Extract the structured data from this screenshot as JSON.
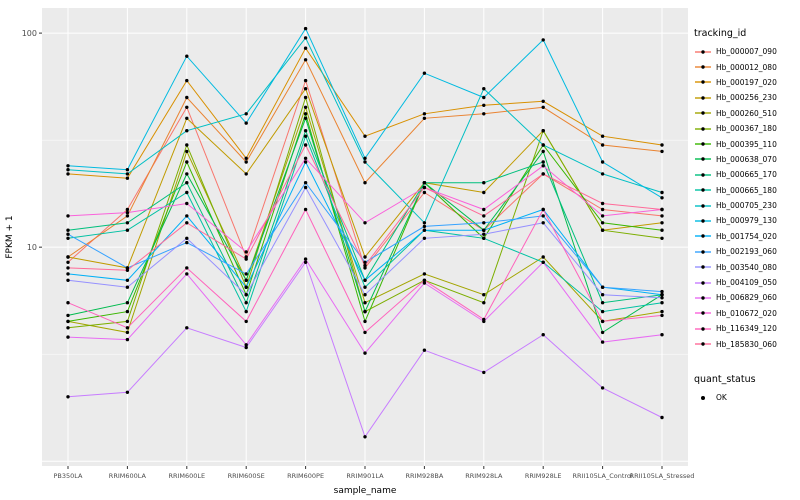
{
  "figure": {
    "background": "#FFFFFF",
    "panel_background": "#EBEBEB",
    "grid_color": "#FFFFFF",
    "xlabel": "sample_name",
    "ylabel": "FPKM + 1"
  },
  "legend": {
    "tracking_title": "tracking_id",
    "quant_title": "quant_status",
    "quant_items": [
      {
        "label": "OK",
        "symbol": "point",
        "color": "#000000"
      }
    ]
  },
  "chart_data": {
    "type": "line",
    "x_type": "categorical",
    "title": "",
    "xlabel": "sample_name",
    "ylabel": "FPKM + 1",
    "y_scale": "log10",
    "y_ticks": [
      10,
      100
    ],
    "y_tick_labels": [
      "10",
      "100"
    ],
    "ylim": [
      0.95,
      131
    ],
    "grid": true,
    "legend_position": "right",
    "point_color": "#000000",
    "categories": [
      "PB350LA",
      "RRIM600LA",
      "RRIM600LE",
      "RRIM600SE",
      "RRIM600PE",
      "RRIM901LA",
      "RRIM928BA",
      "RRIM928LA",
      "RRIM928LE",
      "RRII105LA_Control",
      "RRII105LA_Stressed"
    ],
    "series": [
      {
        "name": "Hb_000007_090",
        "color": "#F8766D",
        "values": [
          8.5,
          15,
          45,
          9,
          60,
          8,
          18,
          12,
          22,
          15,
          14
        ]
      },
      {
        "name": "Hb_000012_080",
        "color": "#EA8331",
        "values": [
          9,
          14,
          50,
          25,
          75,
          20,
          40,
          42,
          45,
          30,
          28
        ]
      },
      {
        "name": "Hb_000197_020",
        "color": "#D89000",
        "values": [
          22,
          21,
          60,
          26,
          85,
          33,
          42,
          46,
          48,
          33,
          30
        ]
      },
      {
        "name": "Hb_000256_230",
        "color": "#C09B00",
        "values": [
          9,
          8,
          40,
          22,
          55,
          9,
          20,
          18,
          35,
          12,
          13
        ]
      },
      {
        "name": "Hb_000260_510",
        "color": "#A3A500",
        "values": [
          4.5,
          4,
          28,
          7,
          45,
          5.5,
          7.5,
          6,
          9,
          4.5,
          5
        ]
      },
      {
        "name": "Hb_000367_180",
        "color": "#7CAE00",
        "values": [
          4.2,
          4.5,
          30,
          6.5,
          50,
          5,
          7,
          5.5,
          35,
          12,
          11
        ]
      },
      {
        "name": "Hb_000395_110",
        "color": "#39B600",
        "values": [
          4.5,
          5,
          25,
          6,
          42,
          4.5,
          20,
          11,
          30,
          13,
          12
        ]
      },
      {
        "name": "Hb_000638_070",
        "color": "#00BB4E",
        "values": [
          4.8,
          5.5,
          22,
          7,
          40,
          5,
          20,
          12,
          28,
          4,
          6
        ]
      },
      {
        "name": "Hb_000665_170",
        "color": "#00BF7D",
        "values": [
          12,
          13,
          20,
          5.5,
          35,
          7,
          20,
          20,
          25,
          5.5,
          6
        ]
      },
      {
        "name": "Hb_000665_180",
        "color": "#00C1A3",
        "values": [
          11,
          12,
          18,
          5,
          33,
          6.5,
          12,
          11,
          8.5,
          5,
          5.5
        ]
      },
      {
        "name": "Hb_000705_230",
        "color": "#00BFC4",
        "values": [
          23,
          22,
          35,
          42,
          95,
          25,
          13,
          55,
          30,
          22,
          18
        ]
      },
      {
        "name": "Hb_000979_130",
        "color": "#00BAE0",
        "values": [
          24,
          23,
          78,
          38,
          105,
          26,
          65,
          50,
          93,
          25,
          17
        ]
      },
      {
        "name": "Hb_001754_020",
        "color": "#00B0F6",
        "values": [
          7.5,
          7,
          14,
          6.5,
          25,
          7,
          12,
          12,
          15,
          6.5,
          6
        ]
      },
      {
        "name": "Hb_002193_060",
        "color": "#35A2FF",
        "values": [
          11.5,
          8,
          10.5,
          7.5,
          20,
          8.5,
          12.5,
          13,
          14,
          6.5,
          6.2
        ]
      },
      {
        "name": "Hb_003540_080",
        "color": "#9590FF",
        "values": [
          7,
          6.5,
          11,
          6,
          19,
          6,
          11,
          11.5,
          13,
          6,
          5.8
        ]
      },
      {
        "name": "Hb_004109_050",
        "color": "#C77CFF",
        "values": [
          2.0,
          2.1,
          4.2,
          3.4,
          8.5,
          1.3,
          3.3,
          2.6,
          3.9,
          2.2,
          1.6
        ]
      },
      {
        "name": "Hb_006829_060",
        "color": "#E76BF3",
        "values": [
          3.8,
          3.7,
          7.5,
          3.5,
          8.8,
          3.2,
          6.8,
          4.5,
          8.5,
          3.6,
          3.9
        ]
      },
      {
        "name": "Hb_010672_020",
        "color": "#FA62DB",
        "values": [
          14,
          14.5,
          16,
          9.5,
          26,
          13,
          19,
          15,
          24,
          14,
          15
        ]
      },
      {
        "name": "Hb_116349_120",
        "color": "#FF62BC",
        "values": [
          5.5,
          4.2,
          8,
          4.5,
          15,
          4,
          7,
          4.6,
          15,
          4.5,
          4.8
        ]
      },
      {
        "name": "Hb_185830_060",
        "color": "#FF6A98",
        "values": [
          8,
          7.8,
          13,
          8.8,
          30,
          8.2,
          19,
          14,
          22,
          16,
          15
        ]
      }
    ]
  }
}
